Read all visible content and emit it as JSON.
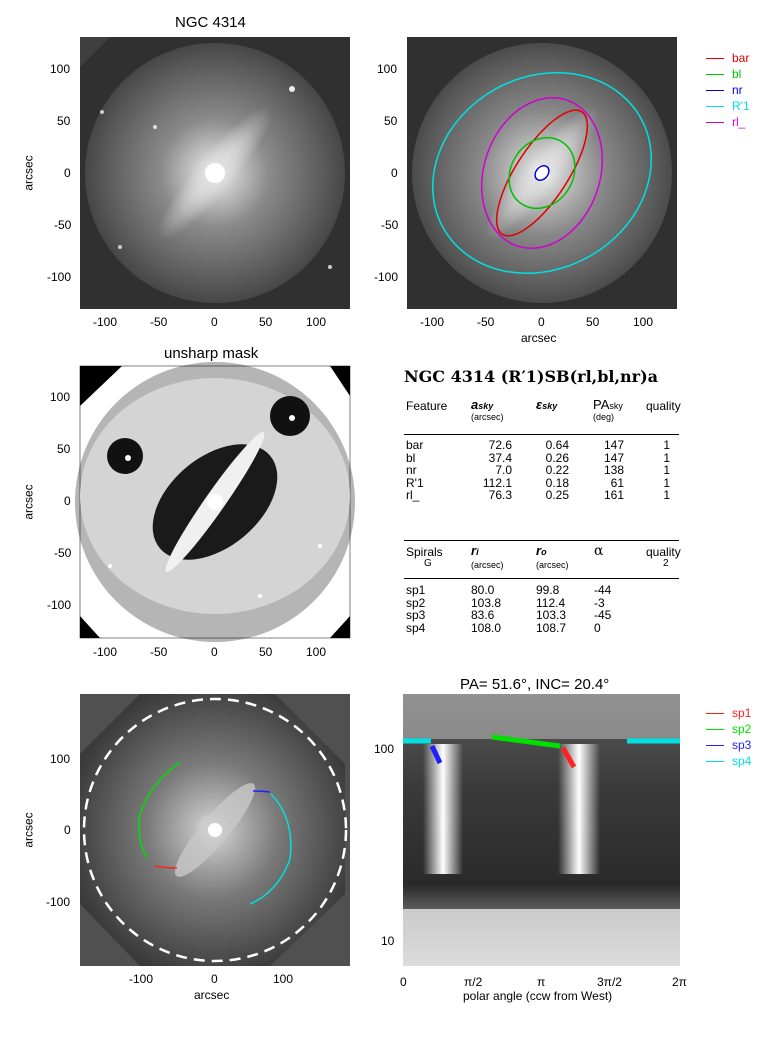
{
  "panel1": {
    "title": "NGC 4314",
    "ylabel": "arcsec",
    "yticks": [
      "100",
      "50",
      "0",
      "-50",
      "-100"
    ],
    "xticks": [
      "-100",
      "-50",
      "0",
      "50",
      "100"
    ]
  },
  "panel2": {
    "xlabel": "arcsec",
    "yticks": [
      "100",
      "50",
      "0",
      "-50",
      "-100"
    ],
    "xticks": [
      "-100",
      "-50",
      "0",
      "50",
      "100"
    ],
    "legend": [
      {
        "label": "bar",
        "color": "#e00000"
      },
      {
        "label": "bl",
        "color": "#00c000"
      },
      {
        "label": "nr",
        "color": "#0000e0"
      },
      {
        "label": "R'1",
        "color": "#00e0e0"
      },
      {
        "label": "rl_",
        "color": "#d000d0"
      }
    ]
  },
  "panel3": {
    "title": "unsharp mask",
    "ylabel": "arcsec",
    "yticks": [
      "100",
      "50",
      "0",
      "-50",
      "-100"
    ],
    "xticks": [
      "-100",
      "-50",
      "0",
      "50",
      "100"
    ]
  },
  "table": {
    "title": "NGC 4314  (R′1)SB(rl,bl,nr)a",
    "features_header": {
      "c1": "Feature",
      "c2": "a",
      "c2sub": "sky",
      "c2unit": "(arcsec)",
      "c3": "ε",
      "c3sub": "sky",
      "c4": "PA",
      "c4sub": "sky",
      "c4unit": "(deg)",
      "c5": "quality"
    },
    "features": [
      {
        "name": "bar",
        "a": "72.6",
        "e": "0.64",
        "pa": "147",
        "q": "1"
      },
      {
        "name": "bl",
        "a": "37.4",
        "e": "0.26",
        "pa": "147",
        "q": "1"
      },
      {
        "name": "nr",
        "a": "7.0",
        "e": "0.22",
        "pa": "138",
        "q": "1"
      },
      {
        "name": "R'1",
        "a": "112.1",
        "e": "0.18",
        "pa": "61",
        "q": "1"
      },
      {
        "name": "rl_",
        "a": "76.3",
        "e": "0.25",
        "pa": "161",
        "q": "1"
      }
    ],
    "spirals_header": {
      "c1": "Spirals",
      "c1b": "G",
      "c2": "r",
      "c2sub": "i",
      "c2unit": "(arcsec)",
      "c3": "r",
      "c3sub": "o",
      "c3unit": "(arcsec)",
      "c4": "α",
      "c5": "quality",
      "c5b": "2"
    },
    "spirals": [
      {
        "name": "sp1",
        "ri": "80.0",
        "ro": "99.8",
        "alpha": "-44"
      },
      {
        "name": "sp2",
        "ri": "103.8",
        "ro": "112.4",
        "alpha": "-3"
      },
      {
        "name": "sp3",
        "ri": "83.6",
        "ro": "103.3",
        "alpha": "-45"
      },
      {
        "name": "sp4",
        "ri": "108.0",
        "ro": "108.7",
        "alpha": "0"
      }
    ]
  },
  "panel5": {
    "ylabel": "arcsec",
    "xlabel": "arcsec",
    "yticks": [
      "100",
      "0",
      "-100"
    ],
    "xticks": [
      "-100",
      "0",
      "100"
    ]
  },
  "panel6": {
    "title": "PA=  51.6°, INC=  20.4°",
    "xlabel": "polar angle (ccw from West)",
    "xticks": [
      "0",
      "π/2",
      "π",
      "3π/2",
      "2π"
    ],
    "yticks": [
      "100",
      "10"
    ],
    "legend": [
      {
        "label": "sp1",
        "color": "#ff2020"
      },
      {
        "label": "sp2",
        "color": "#00e000"
      },
      {
        "label": "sp3",
        "color": "#2020ff"
      },
      {
        "label": "sp4",
        "color": "#00e0e0"
      }
    ]
  }
}
